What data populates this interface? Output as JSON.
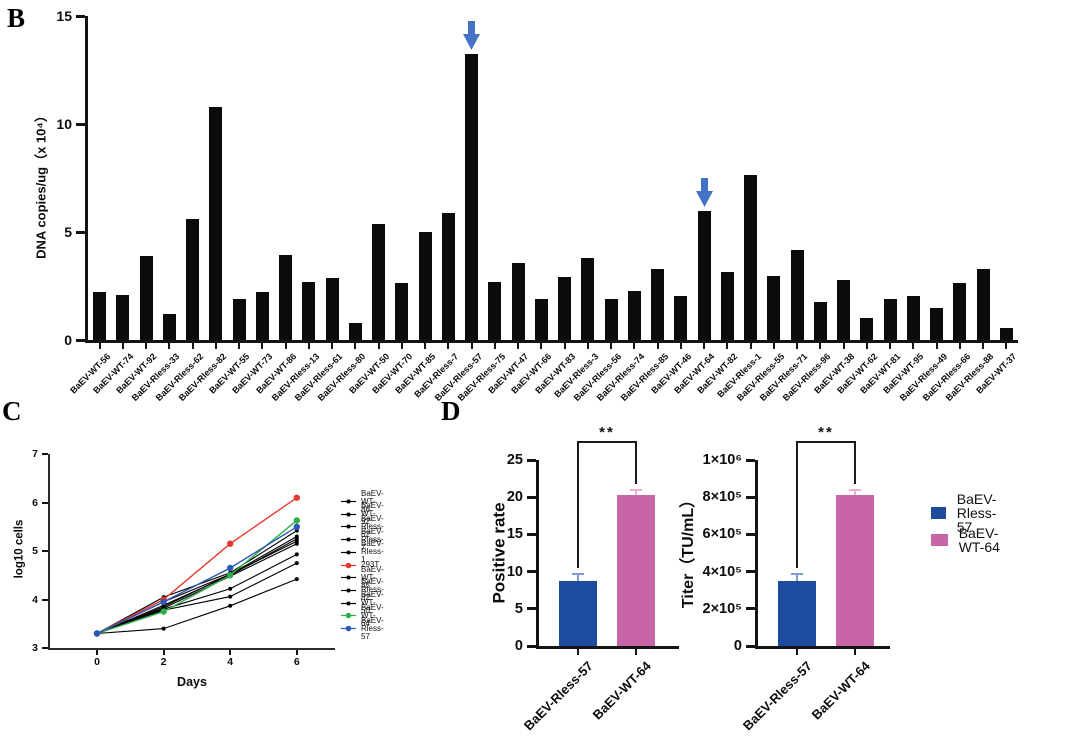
{
  "panels": {
    "b": {
      "label": "B"
    },
    "c": {
      "label": "C"
    },
    "d": {
      "label": "D"
    }
  },
  "colors": {
    "bar_black": "#0b0b0b",
    "arrow_blue": "#4472c4",
    "group_blue": "#1d4b9e",
    "group_pink": "#c765a8",
    "err_blue": "#7f9cd2",
    "err_pink": "#eeb0d6",
    "line_red": "#e8392f",
    "line_green": "#2eaf4b",
    "line_blue": "#2b57b5",
    "line_black": "#000000"
  },
  "chart_data": [
    {
      "type": "bar",
      "panel": "B",
      "ylabel": "DNA copies/ug（x 10⁴）",
      "ylim": [
        0,
        15
      ],
      "yticks": [
        0,
        5,
        10,
        15
      ],
      "grid": false,
      "categories": [
        "BaEV-WT-56",
        "BaEV-WT-74",
        "BaEV-WT-92",
        "BaEV-Rless-33",
        "BaEV-Rless-62",
        "BaEV-Rless-82",
        "BaEV-WT-55",
        "BaEV-WT-73",
        "BaEV-WT-86",
        "BaEV-Rless-13",
        "BaEV-Rless-61",
        "BaEV-Rless-80",
        "BaEV-WT-50",
        "BaEV-WT-70",
        "BaEV-WT-85",
        "BaEV-Rless-7",
        "BaEV-Rless-57",
        "BaEV-Rless-75",
        "BaEV-WT-47",
        "BaEV-WT-66",
        "BaEV-WT-83",
        "BaEV-Rless-3",
        "BaEV-Rless-56",
        "BaEV-Rless-74",
        "BaEV-Rless-85",
        "BaEV-WT-46",
        "BaEV-WT-64",
        "BaEV-WT-82",
        "BaEV-Rless-1",
        "BaEV-Rless-55",
        "BaEV-Rless-71",
        "BaEV-Rless-96",
        "BaEV-WT-38",
        "BaEV-WT-62",
        "BaEV-WT-81",
        "BaEV-WT-95",
        "BaEV-Rless-49",
        "BaEV-Rless-66",
        "BaEV-Rless-88",
        "BaEV-WT-37"
      ],
      "values": [
        2.2,
        2.1,
        3.9,
        1.2,
        5.6,
        10.8,
        1.9,
        2.2,
        3.95,
        2.7,
        2.85,
        0.8,
        5.35,
        2.65,
        5.0,
        5.9,
        13.25,
        2.7,
        3.55,
        1.9,
        2.9,
        3.8,
        1.9,
        2.25,
        3.3,
        2.05,
        5.95,
        3.15,
        7.65,
        2.95,
        4.15,
        1.75,
        2.8,
        1.0,
        1.9,
        2.05,
        1.5,
        2.65,
        3.3,
        0.55
      ],
      "arrow_indices": [
        16,
        26
      ]
    },
    {
      "type": "line",
      "panel": "C",
      "xlabel": "Days",
      "ylabel": "log10 cells",
      "x": [
        0,
        2,
        4,
        6
      ],
      "xticks": [
        0,
        2,
        4,
        6
      ],
      "ylim": [
        3,
        7
      ],
      "yticks": [
        3,
        4,
        5,
        6,
        7
      ],
      "grid": false,
      "legend_position": "right",
      "series": [
        {
          "name": "BaEV-WT-86",
          "color": "#000000",
          "values": [
            3.3,
            4.05,
            4.55,
            5.42
          ]
        },
        {
          "name": "BaEV-WT-92",
          "color": "#000000",
          "values": [
            3.3,
            3.95,
            4.52,
            5.3
          ]
        },
        {
          "name": "BaEV-Rless-62",
          "color": "#000000",
          "values": [
            3.3,
            3.88,
            4.5,
            5.25
          ]
        },
        {
          "name": "BaEV-Rless-7",
          "color": "#000000",
          "values": [
            3.3,
            3.85,
            4.52,
            5.2
          ]
        },
        {
          "name": "BaEV-Rless-1",
          "color": "#000000",
          "values": [
            3.3,
            3.82,
            4.48,
            5.15
          ]
        },
        {
          "name": "293T",
          "color": "#e8392f",
          "values": [
            3.3,
            4.0,
            5.15,
            6.1
          ]
        },
        {
          "name": "BaEV-WT-85",
          "color": "#000000",
          "values": [
            3.3,
            3.8,
            4.22,
            4.93
          ]
        },
        {
          "name": "BaEV-Rless-82",
          "color": "#000000",
          "values": [
            3.3,
            3.78,
            4.06,
            4.75
          ]
        },
        {
          "name": "BaEV-WT-50",
          "color": "#000000",
          "values": [
            3.3,
            3.4,
            3.87,
            4.42
          ]
        },
        {
          "name": "BaEV-WT-64",
          "color": "#2eaf4b",
          "values": [
            3.3,
            3.75,
            4.5,
            5.63
          ]
        },
        {
          "name": "BaEV-Rless-57",
          "color": "#2b57b5",
          "values": [
            3.3,
            3.95,
            4.65,
            5.5
          ]
        }
      ]
    },
    {
      "type": "bar",
      "panel": "D-left",
      "ylabel": "Positive rate",
      "ylim": [
        0,
        25
      ],
      "yticks": [
        0,
        5,
        10,
        15,
        20,
        25
      ],
      "ytick_labels": [
        "0",
        "5",
        "10",
        "15",
        "20",
        "25"
      ],
      "categories": [
        "BaEV-Rless-57",
        "BaEV-WT-64"
      ],
      "values": [
        8.7,
        20.3
      ],
      "errors_up": [
        1.1,
        0.8
      ],
      "bar_colors": [
        "#1d4b9e",
        "#c765a8"
      ],
      "error_colors": [
        "#7f9cd2",
        "#eeb0d6"
      ],
      "significance": "**"
    },
    {
      "type": "bar",
      "panel": "D-right",
      "ylabel": "Titer（TU/mL）",
      "ylim": [
        0,
        1000000
      ],
      "yticks": [
        0,
        200000,
        400000,
        600000,
        800000,
        1000000
      ],
      "ytick_labels": [
        "0",
        "2×10⁵",
        "4×10⁵",
        "6×10⁵",
        "8×10⁵",
        "1×10⁶"
      ],
      "categories": [
        "BaEV-Rless-57",
        "BaEV-WT-64"
      ],
      "values": [
        350000,
        810000
      ],
      "errors_up": [
        45000,
        35000
      ],
      "bar_colors": [
        "#1d4b9e",
        "#c765a8"
      ],
      "error_colors": [
        "#7f9cd2",
        "#eeb0d6"
      ],
      "significance": "**",
      "legend": [
        {
          "label": "BaEV-Rless-57",
          "color": "#1d4b9e"
        },
        {
          "label": "BaEV-WT-64",
          "color": "#c765a8"
        }
      ]
    }
  ]
}
